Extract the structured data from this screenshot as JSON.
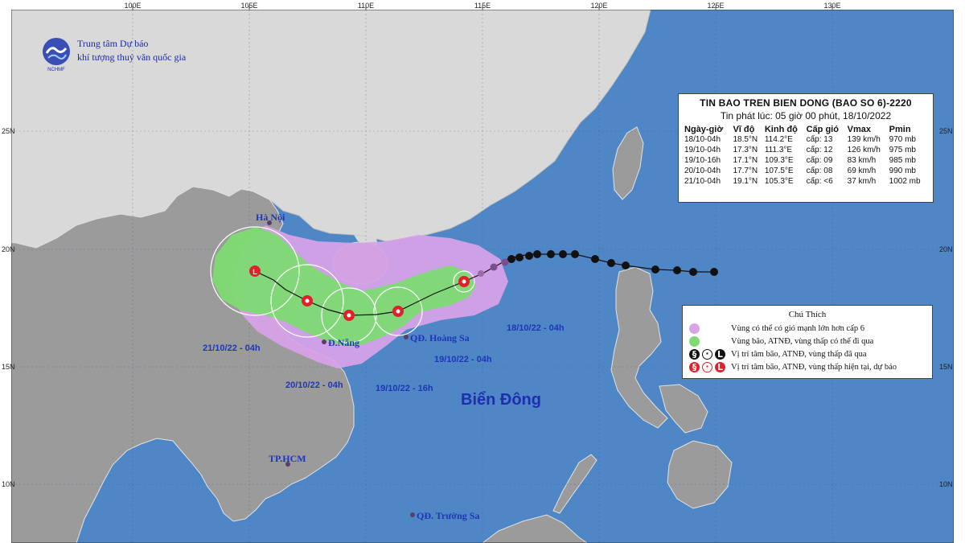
{
  "agency": {
    "name_line1": "Trung tâm Dự báo",
    "name_line2": "khí tượng thuỷ văn quốc gia",
    "logo_text": "NCHMF"
  },
  "axes": {
    "longitudes": [
      "100E",
      "105E",
      "110E",
      "115E",
      "120E",
      "125E",
      "130E"
    ],
    "latitudes": [
      "25N",
      "20N",
      "15N",
      "10N"
    ]
  },
  "places": {
    "hanoi": "Hà Nội",
    "danang": "Đ.Nẵng",
    "hoangsa": "QĐ. Hoàng Sa",
    "hcm": "TP.HCM",
    "truongsa": "QĐ. Trường Sa",
    "sea": "Biển Đông"
  },
  "track_labels": {
    "t1": "18/10/22 - 04h",
    "t2": "19/10/22 - 04h",
    "t3": "19/10/22 - 16h",
    "t4": "20/10/22 - 04h",
    "t5": "21/10/22 - 04h"
  },
  "bulletin": {
    "title": "TIN BAO TREN BIEN DONG (BAO SO 6)-2220",
    "issued": "Tin phát lúc: 05 giờ 00 phút, 18/10/2022",
    "headers": [
      "Ngày-giờ",
      "Vĩ độ",
      "Kinh độ",
      "Cấp gió",
      "Vmax",
      "Pmin"
    ],
    "rows": [
      [
        "18/10-04h",
        "18.5°N",
        "114.2°E",
        "cấp: 13",
        "139 km/h",
        "970 mb"
      ],
      [
        "19/10-04h",
        "17.3°N",
        "111.3°E",
        "cấp: 12",
        "126 km/h",
        "975 mb"
      ],
      [
        "19/10-16h",
        "17.1°N",
        "109.3°E",
        "cấp: 09",
        "83 km/h",
        "985 mb"
      ],
      [
        "20/10-04h",
        "17.7°N",
        "107.5°E",
        "cấp: 08",
        "69 km/h",
        "990 mb"
      ],
      [
        "21/10-04h",
        "19.1°N",
        "105.3°E",
        "cấp: <6",
        "37 km/h",
        "1002 mb"
      ]
    ]
  },
  "legend": {
    "title": "Chú Thích",
    "items": [
      "Vùng có thể có gió mạnh lớn hơn cấp 6",
      "Vùng bão, ATNĐ, vùng thấp có thể đi qua",
      "Vị trí tâm bão, ATNĐ, vùng thấp đã qua",
      "Vị trí tâm bão, ATNĐ, vùng thấp hiện tại, dự báo"
    ],
    "colors": {
      "strong_wind": "#d9a3e8",
      "storm_zone": "#7fdc78",
      "past": "#111111",
      "forecast": "#e0212b"
    }
  },
  "colors": {
    "sea": "#4f86c6",
    "land": "#9a9a9a",
    "china": "#d7d7d7",
    "label": "#1f36b8"
  }
}
